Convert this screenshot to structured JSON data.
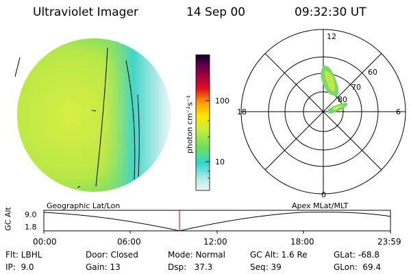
{
  "header": {
    "instrument": "Ultraviolet Imager",
    "date": "14 Sep 00",
    "time": "09:32:30 UT"
  },
  "colorbar": {
    "label": "photon cm⁻²s⁻¹",
    "ticks": [
      "100",
      "10"
    ]
  },
  "polar_plot": {
    "mlt_labels": {
      "top": "12",
      "left": "18",
      "right": "6",
      "bottom": "0"
    },
    "lat_labels": [
      "60",
      "70",
      "80"
    ]
  },
  "panel_labels": {
    "left": "Geographic Lat/Lon",
    "right": "Apex MLat/MLT"
  },
  "altitude_plot": {
    "ylabel": "GC Alt",
    "yticks": [
      "9.0",
      "1.8"
    ],
    "xticks": [
      "00:00",
      "06:00",
      "12:00",
      "18:00",
      "23:59"
    ]
  },
  "footer": {
    "row1": [
      "Flt: LBHL",
      "Door: Closed",
      "Mode: Normal",
      "GC Alt: 1.6 Re",
      "GLat: -68.8"
    ],
    "row2": [
      "IP:  9.0",
      "Gain: 13",
      "Dsp:   37.3",
      "Seq: 39",
      "GLon:  69.4"
    ]
  }
}
